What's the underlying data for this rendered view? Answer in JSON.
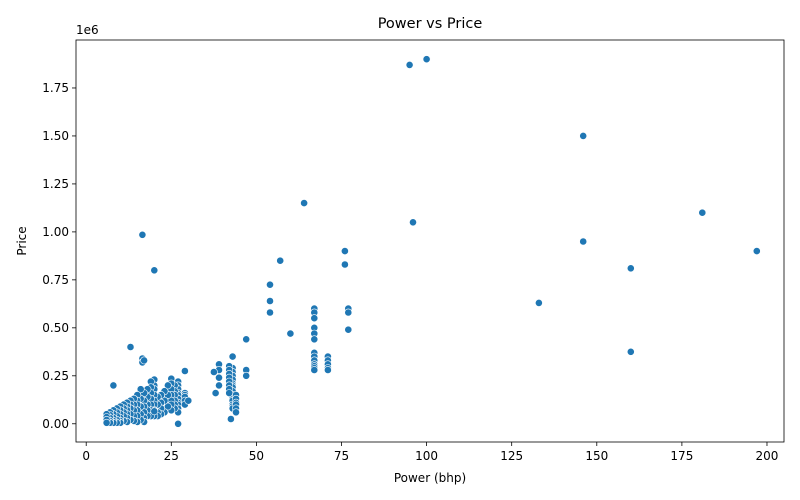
{
  "chart_data": {
    "type": "scatter",
    "title": "Power vs Price",
    "xlabel": "Power (bhp)",
    "ylabel": "Price",
    "y_offset_label": "1e6",
    "xlim": [
      -3,
      205
    ],
    "ylim": [
      -95000,
      2000000
    ],
    "xticks": [
      0,
      25,
      50,
      75,
      100,
      125,
      150,
      175,
      200
    ],
    "xtick_labels": [
      "0",
      "25",
      "50",
      "75",
      "100",
      "125",
      "150",
      "175",
      "200"
    ],
    "yticks": [
      0,
      250000,
      500000,
      750000,
      1000000,
      1250000,
      1500000,
      1750000
    ],
    "ytick_labels": [
      "0.00",
      "0.25",
      "0.50",
      "0.75",
      "1.00",
      "1.25",
      "1.50",
      "1.75"
    ],
    "grid": false,
    "legend": "none",
    "color": "#1f77b4",
    "x": [
      100,
      95,
      146,
      64,
      181,
      96,
      16.5,
      146,
      197,
      76,
      57,
      76,
      160,
      20,
      54,
      54,
      133,
      54,
      67,
      67,
      67,
      67,
      67,
      67,
      67,
      67,
      67,
      67,
      67,
      67,
      67,
      77,
      77,
      77,
      71,
      71,
      71,
      71,
      71,
      60,
      160,
      47,
      47,
      47,
      43,
      43,
      43,
      43,
      43,
      43,
      43,
      43,
      43,
      43,
      43,
      43,
      43,
      43,
      43,
      43,
      42,
      42,
      42,
      42,
      42,
      42,
      42,
      42,
      39,
      39,
      39,
      39,
      38,
      37.5,
      44,
      44,
      44,
      44,
      44,
      44,
      29,
      29,
      29,
      29,
      29,
      29,
      30,
      27,
      27,
      27,
      27,
      27,
      27,
      27,
      27,
      27,
      27,
      26,
      26,
      26,
      26,
      26,
      26,
      25,
      25,
      25,
      25,
      25,
      25,
      25,
      24,
      24,
      24,
      23,
      23,
      23,
      22,
      22,
      22,
      22,
      21,
      21,
      21,
      21,
      20,
      20,
      20,
      20,
      20,
      20,
      20,
      20,
      19,
      19,
      19,
      19,
      19,
      19,
      19,
      18,
      18,
      18,
      18,
      18,
      17,
      17,
      17,
      17,
      17,
      17,
      16.5,
      16.5,
      16,
      16,
      16,
      16,
      16,
      15,
      15,
      15,
      15,
      15,
      15,
      14,
      14,
      14,
      14,
      14,
      13,
      13,
      13,
      13,
      13,
      12,
      12,
      12,
      12,
      12,
      12,
      11,
      11,
      11,
      11,
      11,
      10,
      10,
      10,
      10,
      10,
      10,
      9,
      9,
      9,
      9,
      9,
      8,
      8,
      8,
      8,
      8,
      7,
      7,
      7,
      7,
      7,
      6,
      6,
      6,
      6,
      13,
      8,
      27,
      42.5,
      20,
      17
    ],
    "y": [
      1900000,
      1870000,
      1500000,
      1150000,
      1100000,
      1050000,
      985000,
      950000,
      900000,
      900000,
      850000,
      830000,
      810000,
      800000,
      725000,
      640000,
      630000,
      580000,
      600000,
      580000,
      550000,
      500000,
      470000,
      440000,
      370000,
      350000,
      330000,
      310000,
      300000,
      290000,
      280000,
      600000,
      580000,
      490000,
      350000,
      330000,
      310000,
      290000,
      280000,
      470000,
      375000,
      440000,
      280000,
      250000,
      350000,
      290000,
      270000,
      250000,
      230000,
      210000,
      200000,
      190000,
      170000,
      150000,
      140000,
      130000,
      120000,
      100000,
      90000,
      80000,
      300000,
      280000,
      260000,
      240000,
      220000,
      200000,
      180000,
      160000,
      310000,
      280000,
      240000,
      200000,
      160000,
      270000,
      150000,
      130000,
      110000,
      100000,
      80000,
      60000,
      275000,
      160000,
      150000,
      140000,
      120000,
      100000,
      120000,
      220000,
      200000,
      180000,
      160000,
      150000,
      130000,
      110000,
      100000,
      80000,
      60000,
      200000,
      170000,
      150000,
      120000,
      100000,
      80000,
      235000,
      210000,
      180000,
      150000,
      120000,
      100000,
      70000,
      200000,
      150000,
      90000,
      170000,
      120000,
      60000,
      150000,
      110000,
      80000,
      50000,
      140000,
      100000,
      60000,
      40000,
      230000,
      200000,
      180000,
      150000,
      120000,
      100000,
      70000,
      40000,
      220000,
      190000,
      160000,
      130000,
      100000,
      70000,
      40000,
      180000,
      140000,
      100000,
      70000,
      40000,
      160000,
      120000,
      90000,
      60000,
      30000,
      10000,
      340000,
      320000,
      180000,
      130000,
      90000,
      50000,
      20000,
      150000,
      120000,
      100000,
      70000,
      40000,
      10000,
      130000,
      100000,
      70000,
      40000,
      15000,
      120000,
      100000,
      80000,
      50000,
      20000,
      110000,
      90000,
      70000,
      50000,
      30000,
      10000,
      100000,
      80000,
      60000,
      40000,
      15000,
      90000,
      70000,
      50000,
      30000,
      15000,
      5000,
      80000,
      60000,
      40000,
      20000,
      5000,
      70000,
      50000,
      30000,
      15000,
      5000,
      60000,
      45000,
      30000,
      15000,
      5000,
      50000,
      35000,
      20000,
      5000,
      400000,
      200000,
      0,
      25000,
      65000,
      330000
    ]
  }
}
